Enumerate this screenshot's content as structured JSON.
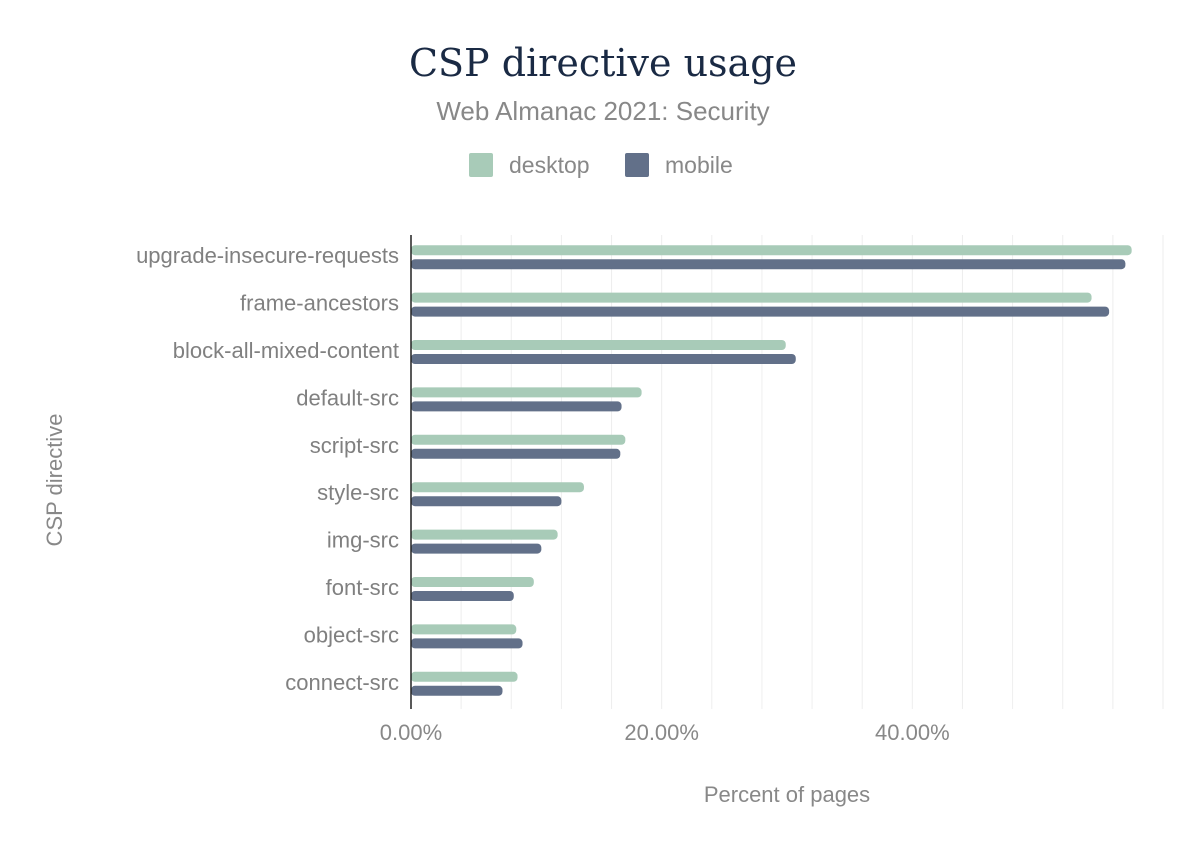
{
  "chart_data": {
    "type": "bar",
    "orientation": "horizontal",
    "title": "CSP directive usage",
    "subtitle": "Web Almanac 2021: Security",
    "xlabel": "Percent of pages",
    "ylabel": "CSP directive",
    "xlim": [
      0,
      60
    ],
    "x_ticks": [
      "0.00%",
      "20.00%",
      "40.00%"
    ],
    "x_tick_values": [
      0,
      20,
      40
    ],
    "legend_position": "top-center",
    "grid": true,
    "categories": [
      "upgrade-insecure-requests",
      "frame-ancestors",
      "block-all-mixed-content",
      "default-src",
      "script-src",
      "style-src",
      "img-src",
      "font-src",
      "object-src",
      "connect-src"
    ],
    "series": [
      {
        "name": "desktop",
        "color": "#a8cbb8",
        "values": [
          57.5,
          54.3,
          29.9,
          18.4,
          17.1,
          13.8,
          11.7,
          9.8,
          8.4,
          8.5
        ]
      },
      {
        "name": "mobile",
        "color": "#627089",
        "values": [
          57.0,
          55.7,
          30.7,
          16.8,
          16.7,
          12.0,
          10.4,
          8.2,
          8.9,
          7.3
        ]
      }
    ]
  }
}
